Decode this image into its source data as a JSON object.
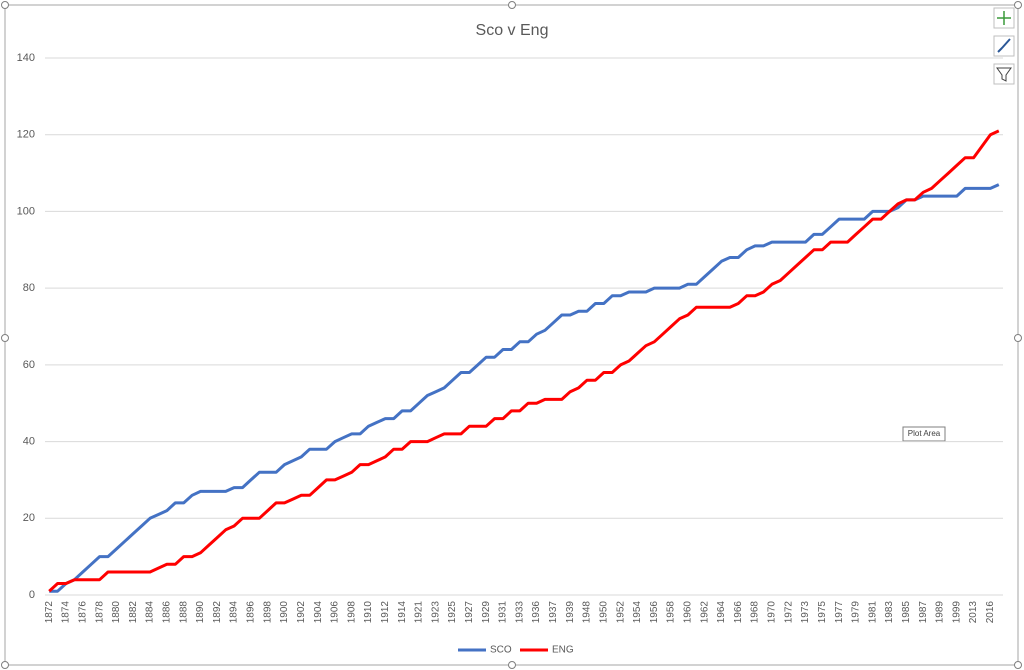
{
  "chart_data": {
    "type": "line",
    "title": "Sco v Eng",
    "categories": [
      "1872",
      null,
      "1874",
      null,
      "1876",
      null,
      "1878",
      null,
      "1880",
      null,
      "1882",
      null,
      "1884",
      null,
      "1886",
      null,
      "1888",
      null,
      "1890",
      null,
      "1892",
      null,
      "1894",
      null,
      "1896",
      null,
      "1898",
      null,
      "1900",
      null,
      "1902",
      null,
      "1904",
      null,
      "1906",
      null,
      "1908",
      null,
      "1910",
      null,
      "1912",
      null,
      "1914",
      null,
      "1921",
      null,
      "1923",
      null,
      "1925",
      null,
      "1927",
      null,
      "1929",
      null,
      "1931",
      null,
      "1933",
      null,
      "1936",
      null,
      "1937",
      null,
      "1939",
      null,
      "1948",
      null,
      "1950",
      null,
      "1952",
      null,
      "1954",
      null,
      "1956",
      null,
      "1958",
      null,
      "1960",
      null,
      "1962",
      null,
      "1964",
      null,
      "1966",
      null,
      "1968",
      null,
      "1970",
      null,
      "1972",
      null,
      "1973",
      null,
      "1975",
      null,
      "1977",
      null,
      "1979",
      null,
      "1981",
      null,
      "1983",
      null,
      "1985",
      null,
      "1987",
      null,
      "1989",
      null,
      "1999",
      null,
      "2013",
      null,
      "2016",
      null
    ],
    "series": [
      {
        "name": "SCO",
        "color": "#4472c4",
        "values": [
          1,
          1,
          3,
          4,
          6,
          8,
          10,
          10,
          12,
          14,
          16,
          18,
          20,
          21,
          22,
          24,
          24,
          26,
          27,
          27,
          27,
          27,
          28,
          28,
          30,
          32,
          32,
          32,
          34,
          35,
          36,
          38,
          38,
          38,
          40,
          41,
          42,
          42,
          44,
          45,
          46,
          46,
          48,
          48,
          50,
          52,
          53,
          54,
          56,
          58,
          58,
          60,
          62,
          62,
          64,
          64,
          66,
          66,
          68,
          69,
          71,
          73,
          73,
          74,
          74,
          76,
          76,
          78,
          78,
          79,
          79,
          79,
          80,
          80,
          80,
          80,
          81,
          81,
          83,
          85,
          87,
          88,
          88,
          90,
          91,
          91,
          92,
          92,
          92,
          92,
          92,
          94,
          94,
          96,
          98,
          98,
          98,
          98,
          100,
          100,
          100,
          101,
          103,
          103,
          104,
          104,
          104,
          104,
          104,
          106,
          106,
          106,
          106,
          107
        ]
      },
      {
        "name": "ENG",
        "color": "#ff0000",
        "values": [
          1,
          3,
          3,
          4,
          4,
          4,
          4,
          6,
          6,
          6,
          6,
          6,
          6,
          7,
          8,
          8,
          10,
          10,
          11,
          13,
          15,
          17,
          18,
          20,
          20,
          20,
          22,
          24,
          24,
          25,
          26,
          26,
          28,
          30,
          30,
          31,
          32,
          34,
          34,
          35,
          36,
          38,
          38,
          40,
          40,
          40,
          41,
          42,
          42,
          42,
          44,
          44,
          44,
          46,
          46,
          48,
          48,
          50,
          50,
          51,
          51,
          51,
          53,
          54,
          56,
          56,
          58,
          58,
          60,
          61,
          63,
          65,
          66,
          68,
          70,
          72,
          73,
          75,
          75,
          75,
          75,
          75,
          76,
          78,
          78,
          79,
          81,
          82,
          84,
          86,
          88,
          90,
          90,
          92,
          92,
          92,
          94,
          96,
          98,
          98,
          100,
          102,
          103,
          103,
          105,
          106,
          108,
          110,
          112,
          114,
          114,
          117,
          120,
          121
        ]
      }
    ],
    "ylim": [
      0,
      140
    ],
    "yticks": [
      0,
      20,
      40,
      60,
      80,
      100,
      120,
      140
    ],
    "grid": true,
    "legend": "bottom",
    "tooltip": "Plot Area"
  }
}
